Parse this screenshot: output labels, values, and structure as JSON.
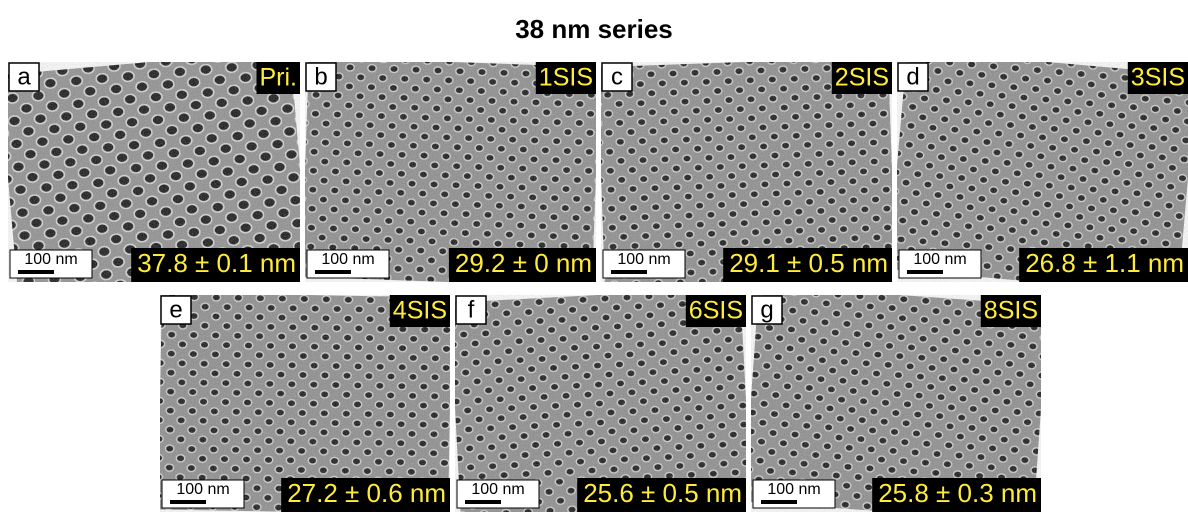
{
  "title": "38 nm series",
  "panels": [
    {
      "letter": "a",
      "tag": "Pri.",
      "scale_bar": "100 nm",
      "measurement": "37.8 ± 0.1 nm"
    },
    {
      "letter": "b",
      "tag": "1SIS",
      "scale_bar": "100 nm",
      "measurement": "29.2 ± 0 nm"
    },
    {
      "letter": "c",
      "tag": "2SIS",
      "scale_bar": "100 nm",
      "measurement": "29.1 ± 0.5 nm"
    },
    {
      "letter": "d",
      "tag": "3SIS",
      "scale_bar": "100 nm",
      "measurement": "26.8 ± 1.1 nm"
    },
    {
      "letter": "e",
      "tag": "4SIS",
      "scale_bar": "100 nm",
      "measurement": "27.2 ± 0.6 nm"
    },
    {
      "letter": "f",
      "tag": "6SIS",
      "scale_bar": "100 nm",
      "measurement": "25.6 ± 0.5 nm"
    },
    {
      "letter": "g",
      "tag": "8SIS",
      "scale_bar": "100 nm",
      "measurement": "25.8 ± 0.3 nm"
    }
  ]
}
